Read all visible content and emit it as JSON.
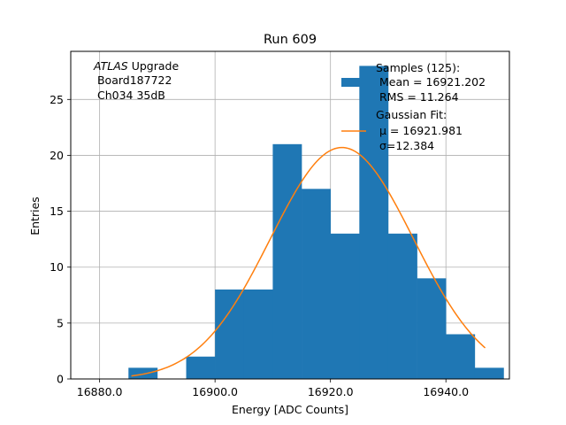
{
  "chart_data": {
    "type": "bar",
    "title": "Run 609",
    "xlabel": "Energy [ADC Counts]",
    "ylabel": "Entries",
    "xlim": [
      16875,
      16951
    ],
    "ylim": [
      0,
      29.3
    ],
    "grid": true,
    "xticks": [
      16880,
      16900,
      16920,
      16940
    ],
    "xtick_labels": [
      "16880.0",
      "16900.0",
      "16920.0",
      "16940.0"
    ],
    "yticks": [
      0,
      5,
      10,
      15,
      20,
      25
    ],
    "ytick_labels": [
      "0",
      "5",
      "10",
      "15",
      "20",
      "25"
    ],
    "bin_edges": [
      16885,
      16890,
      16895,
      16900,
      16905,
      16910,
      16915,
      16920,
      16925,
      16930,
      16935,
      16940,
      16945,
      16950
    ],
    "values": [
      1,
      0,
      2,
      8,
      8,
      21,
      17,
      13,
      28,
      13,
      9,
      4,
      1
    ],
    "bar_color": "#1f77b4",
    "fit": {
      "mu": 16921.981,
      "sigma": 12.384,
      "amplitude": 20.7,
      "x_range": [
        16885.5,
        16946.8
      ],
      "color": "#ff7f0e"
    },
    "annotation": {
      "italic": "ATLAS",
      "rest": " Upgrade",
      "lines": [
        " Board187722",
        " Ch034 35dB"
      ]
    },
    "legend": {
      "placement": "top-right",
      "samples": {
        "lines": [
          "Samples (125):",
          " Mean = 16921.202",
          " RMS = 11.264"
        ]
      },
      "fit": {
        "lines": [
          "Gaussian Fit:",
          "μ = 16921.981",
          "σ=12.384"
        ]
      }
    }
  }
}
